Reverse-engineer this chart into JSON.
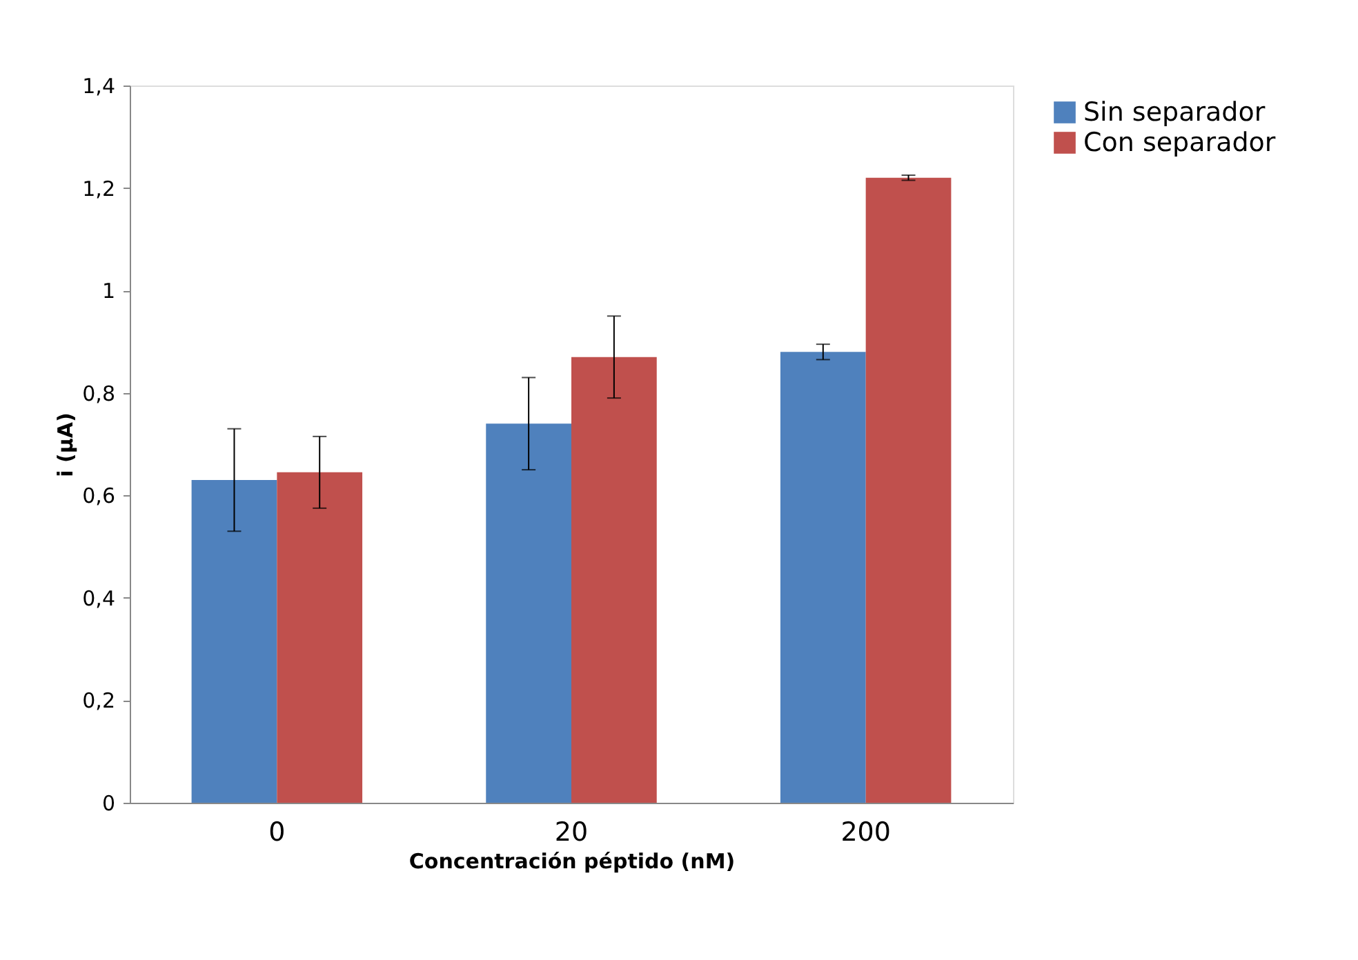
{
  "chart_data": {
    "type": "bar",
    "xlabel": "Concentración péptido (nM)",
    "ylabel": "i (μA)",
    "categories": [
      "0",
      "20",
      "200"
    ],
    "series": [
      {
        "name": "Sin separador",
        "color": "#4f81bd",
        "values": [
          0.63,
          0.74,
          0.88
        ],
        "errors": [
          0.1,
          0.09,
          0.015
        ]
      },
      {
        "name": "Con separador",
        "color": "#c0504d",
        "values": [
          0.645,
          0.87,
          1.22
        ],
        "errors": [
          0.07,
          0.08,
          0.005
        ]
      }
    ],
    "ylim": [
      0,
      1.4
    ],
    "yticks": [
      0,
      {
        "value": 0.2,
        "label": "0,2"
      },
      {
        "value": 0.4,
        "label": "0,4"
      },
      {
        "value": 0.6,
        "label": "0,6"
      },
      {
        "value": 0.8,
        "label": "0,8"
      },
      1,
      {
        "value": 1.2,
        "label": "1,2"
      },
      {
        "value": 1.4,
        "label": "1,4"
      }
    ],
    "grid": false,
    "legend": "right"
  }
}
